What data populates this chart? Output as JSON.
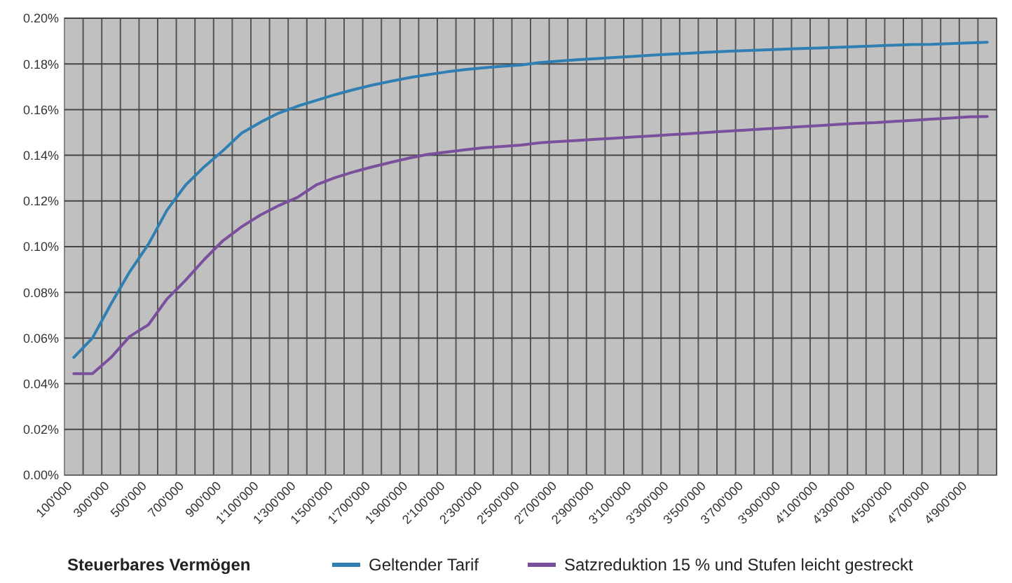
{
  "chart_data": {
    "type": "line",
    "xlabel": "Steuerbares Vermögen",
    "categories": [
      "100'000",
      null,
      "300'000",
      null,
      "500'000",
      null,
      "700'000",
      null,
      "900'000",
      null,
      "1'100'000",
      null,
      "1'300'000",
      null,
      "1'500'000",
      null,
      "1'700'000",
      null,
      "1'900'000",
      null,
      "2'100'000",
      null,
      "2'300'000",
      null,
      "2'500'000",
      null,
      "2'700'000",
      null,
      "2'900'000",
      null,
      "3'100'000",
      null,
      "3'300'000",
      null,
      "3'500'000",
      null,
      "3'700'000",
      null,
      "3'900'000",
      null,
      "4'100'000",
      null,
      "4'300'000",
      null,
      "4'500'000",
      null,
      "4'700'000",
      null,
      "4'900'000",
      null
    ],
    "series": [
      {
        "name": "Geltender Tarif",
        "color": "#2f7fb3",
        "values": [
          0.0515,
          0.06,
          0.075,
          0.089,
          0.101,
          0.116,
          0.127,
          0.135,
          0.142,
          0.1497,
          0.1544,
          0.1585,
          0.1615,
          0.164,
          0.1665,
          0.1687,
          0.1707,
          0.1724,
          0.174,
          0.1753,
          0.1765,
          0.1775,
          0.1783,
          0.179,
          0.1795,
          0.1806,
          0.1812,
          0.1818,
          0.1823,
          0.1828,
          0.1833,
          0.1838,
          0.1843,
          0.1847,
          0.1851,
          0.1855,
          0.1858,
          0.1861,
          0.1864,
          0.1867,
          0.187,
          0.1873,
          0.1876,
          0.1879,
          0.1882,
          0.1885,
          0.1886,
          0.1889,
          0.1892,
          0.1895
        ]
      },
      {
        "name": "Satzreduktion 15 % und Stufen leicht gestreckt",
        "color": "#7a4f9c",
        "values": [
          0.0444,
          0.0444,
          0.0515,
          0.0607,
          0.0658,
          0.0771,
          0.0853,
          0.0944,
          0.1026,
          0.1087,
          0.1138,
          0.118,
          0.1216,
          0.127,
          0.1302,
          0.1327,
          0.1349,
          0.1369,
          0.1388,
          0.1404,
          0.1414,
          0.1424,
          0.1433,
          0.1439,
          0.1445,
          0.1455,
          0.146,
          0.1465,
          0.147,
          0.1475,
          0.148,
          0.1485,
          0.149,
          0.1495,
          0.15,
          0.1505,
          0.151,
          0.1515,
          0.152,
          0.1525,
          0.153,
          0.1535,
          0.154,
          0.1543,
          0.1548,
          0.1553,
          0.1558,
          0.1563,
          0.1568,
          0.157
        ]
      }
    ],
    "ylim": [
      0,
      0.2
    ],
    "yticks": [
      {
        "value": 0,
        "label": "0.00%"
      },
      {
        "value": 0.02,
        "label": "0.02%"
      },
      {
        "value": 0.04,
        "label": "0.04%"
      },
      {
        "value": 0.06,
        "label": "0.06%"
      },
      {
        "value": 0.08,
        "label": "0.08%"
      },
      {
        "value": 0.1,
        "label": "0.10%"
      },
      {
        "value": 0.12,
        "label": "0.12%"
      },
      {
        "value": 0.14,
        "label": "0.14%"
      },
      {
        "value": 0.16,
        "label": "0.16%"
      },
      {
        "value": 0.18,
        "label": "0.18%"
      },
      {
        "value": 0.2,
        "label": "0.20%"
      }
    ],
    "grid": true,
    "legend": "bottom"
  }
}
